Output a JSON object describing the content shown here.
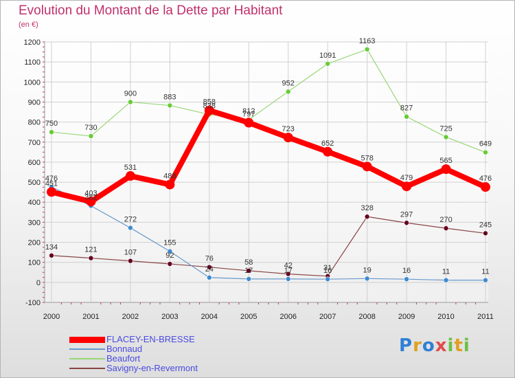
{
  "chart_data": {
    "type": "line",
    "title": "Evolution du Montant de la Dette par Habitant",
    "subtitle": "(en €)",
    "x": [
      "2000",
      "2001",
      "2002",
      "2003",
      "2004",
      "2005",
      "2006",
      "2007",
      "2008",
      "2009",
      "2010",
      "2011"
    ],
    "ylim": [
      -100,
      1200
    ],
    "yticks": [
      -100,
      0,
      100,
      200,
      300,
      400,
      500,
      600,
      700,
      800,
      900,
      1000,
      1100,
      1200
    ],
    "grid": true,
    "legend_position": "bottom-left",
    "series": [
      {
        "name": "FLACEY-EN-BRESSE",
        "color": "#ff0000",
        "point_color": "#ff0000",
        "values": [
          451,
          403,
          531,
          488,
          858,
          797,
          723,
          652,
          578,
          479,
          565,
          476
        ],
        "labels": [
          "451",
          "403",
          "531",
          "488",
          "858",
          "797",
          "723",
          "652",
          "578",
          "479",
          "565",
          "476"
        ]
      },
      {
        "name": "Bonnaud",
        "color": "#6699cc",
        "point_color": "#3e8ad0",
        "values": [
          476,
          382,
          272,
          155,
          24,
          17,
          17,
          16,
          19,
          16,
          11,
          11
        ],
        "labels": [
          "476",
          "382",
          "272",
          "155",
          "24",
          "17",
          "17",
          "16",
          "19",
          "16",
          "11",
          "11"
        ]
      },
      {
        "name": "Beaufort",
        "color": "#99d677",
        "point_color": "#66cc33",
        "values": [
          750,
          730,
          900,
          883,
          838,
          812,
          952,
          1091,
          1163,
          827,
          725,
          649
        ],
        "labels": [
          "750",
          "730",
          "900",
          "883",
          "838",
          "812",
          "952",
          "1091",
          "1163",
          "827",
          "725",
          "649"
        ]
      },
      {
        "name": "Savigny-en-Revermont",
        "color": "#884444",
        "point_color": "#660022",
        "values": [
          134,
          121,
          107,
          92,
          76,
          58,
          42,
          31,
          328,
          297,
          270,
          245
        ],
        "labels": [
          "134",
          "121",
          "107",
          "92",
          "76",
          "58",
          "42",
          "31",
          "328",
          "297",
          "270",
          "245"
        ]
      }
    ]
  },
  "logo": {
    "text": "Proxiti"
  }
}
